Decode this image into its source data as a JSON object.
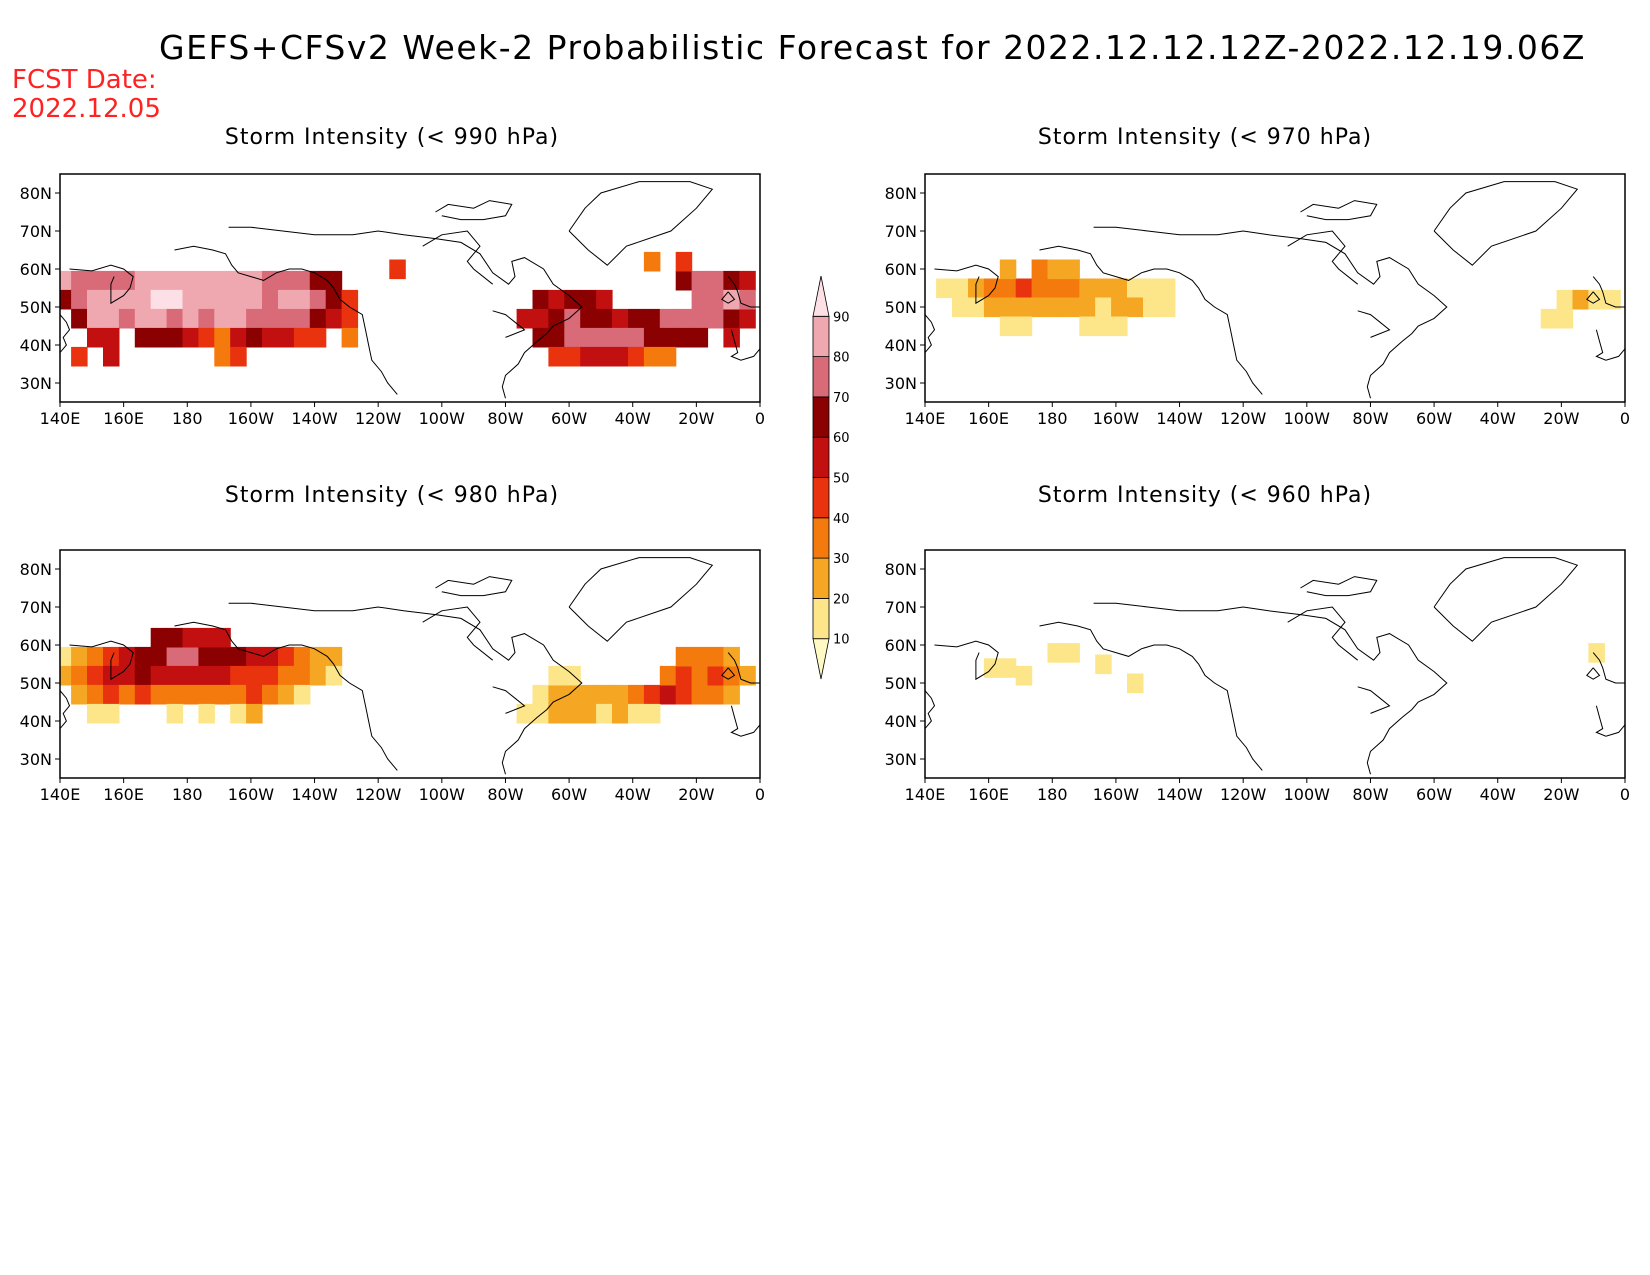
{
  "main_title": "GEFS+CFSv2 Week-2 Probabilistic Forecast for 2022.12.12.12Z-2022.12.19.06Z",
  "fcst_date_label": "FCST Date:",
  "fcst_date": "2022.12.05",
  "lat_labels": [
    "80N",
    "70N",
    "60N",
    "50N",
    "40N",
    "30N"
  ],
  "lat_values": [
    80,
    70,
    60,
    50,
    40,
    30
  ],
  "lon_labels": [
    "140E",
    "160E",
    "180",
    "160W",
    "140W",
    "120W",
    "100W",
    "80W",
    "60W",
    "40W",
    "20W",
    "0"
  ],
  "lon_values": [
    140,
    160,
    180,
    200,
    220,
    240,
    260,
    280,
    300,
    320,
    340,
    360
  ],
  "lat_range": [
    25,
    85
  ],
  "lon_range": [
    140,
    360
  ],
  "colorbar": {
    "levels": [
      10,
      20,
      30,
      40,
      50,
      60,
      70,
      80,
      90
    ],
    "colors": [
      "#fff9c4",
      "#fde68a",
      "#f5a623",
      "#f47a0e",
      "#e8330e",
      "#c21010",
      "#8b0000",
      "#d96a78",
      "#f0a8b0",
      "#fde0e6"
    ]
  },
  "panels": [
    {
      "id": "p990",
      "title": "Storm Intensity (< 990 hPa)",
      "cells": [
        [
          141,
          57,
          80
        ],
        [
          146,
          57,
          70
        ],
        [
          151,
          57,
          70
        ],
        [
          156,
          57,
          70
        ],
        [
          161,
          57,
          75
        ],
        [
          166,
          57,
          85
        ],
        [
          171,
          57,
          85
        ],
        [
          176,
          57,
          85
        ],
        [
          181,
          57,
          85
        ],
        [
          186,
          57,
          85
        ],
        [
          191,
          57,
          85
        ],
        [
          196,
          57,
          85
        ],
        [
          201,
          57,
          80
        ],
        [
          206,
          57,
          75
        ],
        [
          211,
          57,
          70
        ],
        [
          216,
          57,
          70
        ],
        [
          221,
          57,
          65
        ],
        [
          226,
          57,
          60
        ],
        [
          141,
          52,
          65
        ],
        [
          146,
          52,
          75
        ],
        [
          151,
          52,
          80
        ],
        [
          156,
          52,
          80
        ],
        [
          161,
          52,
          85
        ],
        [
          166,
          52,
          85
        ],
        [
          171,
          52,
          90
        ],
        [
          176,
          52,
          90
        ],
        [
          181,
          52,
          85
        ],
        [
          186,
          52,
          85
        ],
        [
          191,
          52,
          85
        ],
        [
          196,
          52,
          80
        ],
        [
          201,
          52,
          80
        ],
        [
          206,
          52,
          75
        ],
        [
          211,
          52,
          80
        ],
        [
          216,
          52,
          85
        ],
        [
          221,
          52,
          70
        ],
        [
          226,
          52,
          60
        ],
        [
          231,
          52,
          45
        ],
        [
          146,
          47,
          60
        ],
        [
          151,
          47,
          80
        ],
        [
          156,
          47,
          80
        ],
        [
          161,
          47,
          75
        ],
        [
          166,
          47,
          80
        ],
        [
          171,
          47,
          80
        ],
        [
          176,
          47,
          75
        ],
        [
          181,
          47,
          80
        ],
        [
          186,
          47,
          75
        ],
        [
          191,
          47,
          80
        ],
        [
          196,
          47,
          80
        ],
        [
          201,
          47,
          75
        ],
        [
          206,
          47,
          70
        ],
        [
          211,
          47,
          75
        ],
        [
          216,
          47,
          70
        ],
        [
          221,
          47,
          65
        ],
        [
          226,
          47,
          55
        ],
        [
          231,
          47,
          40
        ],
        [
          151,
          42,
          55
        ],
        [
          156,
          42,
          50
        ],
        [
          166,
          42,
          60
        ],
        [
          171,
          42,
          65
        ],
        [
          176,
          42,
          60
        ],
        [
          181,
          42,
          55
        ],
        [
          186,
          42,
          40
        ],
        [
          191,
          42,
          30
        ],
        [
          196,
          42,
          55
        ],
        [
          201,
          42,
          60
        ],
        [
          206,
          42,
          55
        ],
        [
          211,
          42,
          50
        ],
        [
          216,
          42,
          45
        ],
        [
          221,
          42,
          40
        ],
        [
          231,
          42,
          35
        ],
        [
          146,
          37,
          40
        ],
        [
          156,
          37,
          50
        ],
        [
          191,
          37,
          30
        ],
        [
          196,
          37,
          40
        ],
        [
          246,
          60,
          40
        ],
        [
          291,
          52,
          60
        ],
        [
          296,
          52,
          55
        ],
        [
          301,
          52,
          65
        ],
        [
          306,
          52,
          60
        ],
        [
          311,
          52,
          55
        ],
        [
          336,
          57,
          60
        ],
        [
          341,
          57,
          70
        ],
        [
          346,
          57,
          70
        ],
        [
          351,
          57,
          65
        ],
        [
          356,
          57,
          55
        ],
        [
          286,
          47,
          50
        ],
        [
          291,
          47,
          55
        ],
        [
          296,
          47,
          65
        ],
        [
          301,
          47,
          70
        ],
        [
          306,
          47,
          65
        ],
        [
          311,
          47,
          60
        ],
        [
          316,
          47,
          55
        ],
        [
          321,
          47,
          60
        ],
        [
          326,
          47,
          65
        ],
        [
          331,
          47,
          70
        ],
        [
          336,
          47,
          75
        ],
        [
          341,
          47,
          75
        ],
        [
          346,
          47,
          70
        ],
        [
          351,
          47,
          65
        ],
        [
          356,
          47,
          55
        ],
        [
          291,
          42,
          60
        ],
        [
          296,
          42,
          65
        ],
        [
          301,
          42,
          70
        ],
        [
          306,
          42,
          70
        ],
        [
          311,
          42,
          70
        ],
        [
          316,
          42,
          70
        ],
        [
          321,
          42,
          70
        ],
        [
          326,
          42,
          65
        ],
        [
          331,
          42,
          60
        ],
        [
          336,
          42,
          65
        ],
        [
          341,
          42,
          60
        ],
        [
          351,
          42,
          50
        ],
        [
          296,
          37,
          40
        ],
        [
          301,
          37,
          45
        ],
        [
          306,
          37,
          50
        ],
        [
          311,
          37,
          55
        ],
        [
          316,
          37,
          50
        ],
        [
          321,
          37,
          40
        ],
        [
          326,
          37,
          35
        ],
        [
          331,
          37,
          30
        ],
        [
          341,
          52,
          75
        ],
        [
          346,
          52,
          75
        ],
        [
          351,
          52,
          80
        ],
        [
          356,
          52,
          70
        ],
        [
          336,
          62,
          40
        ],
        [
          326,
          62,
          30
        ]
      ]
    },
    {
      "id": "p970",
      "title": "Storm Intensity (< 970 hPa)",
      "cells": [
        [
          146,
          55,
          15
        ],
        [
          151,
          55,
          15
        ],
        [
          156,
          55,
          20
        ],
        [
          161,
          55,
          30
        ],
        [
          166,
          55,
          35
        ],
        [
          171,
          55,
          40
        ],
        [
          176,
          55,
          35
        ],
        [
          181,
          55,
          30
        ],
        [
          186,
          55,
          30
        ],
        [
          191,
          55,
          25
        ],
        [
          196,
          55,
          20
        ],
        [
          201,
          55,
          20
        ],
        [
          206,
          55,
          15
        ],
        [
          211,
          55,
          15
        ],
        [
          216,
          55,
          10
        ],
        [
          151,
          50,
          10
        ],
        [
          156,
          50,
          15
        ],
        [
          161,
          50,
          20
        ],
        [
          166,
          50,
          25
        ],
        [
          171,
          50,
          20
        ],
        [
          176,
          50,
          20
        ],
        [
          181,
          50,
          25
        ],
        [
          186,
          50,
          20
        ],
        [
          191,
          50,
          20
        ],
        [
          196,
          50,
          15
        ],
        [
          201,
          50,
          20
        ],
        [
          206,
          50,
          25
        ],
        [
          211,
          50,
          15
        ],
        [
          216,
          50,
          10
        ],
        [
          166,
          45,
          10
        ],
        [
          171,
          45,
          10
        ],
        [
          191,
          45,
          10
        ],
        [
          196,
          45,
          10
        ],
        [
          201,
          45,
          10
        ],
        [
          176,
          60,
          30
        ],
        [
          181,
          60,
          25
        ],
        [
          186,
          60,
          20
        ],
        [
          166,
          60,
          20
        ],
        [
          341,
          52,
          15
        ],
        [
          346,
          52,
          20
        ],
        [
          351,
          52,
          15
        ],
        [
          356,
          52,
          10
        ],
        [
          336,
          47,
          10
        ],
        [
          341,
          47,
          10
        ]
      ]
    },
    {
      "id": "p980",
      "title": "Storm Intensity (< 980 hPa)",
      "cells": [
        [
          141,
          57,
          15
        ],
        [
          146,
          57,
          25
        ],
        [
          151,
          57,
          35
        ],
        [
          156,
          57,
          45
        ],
        [
          161,
          57,
          55
        ],
        [
          166,
          57,
          65
        ],
        [
          171,
          57,
          65
        ],
        [
          176,
          57,
          70
        ],
        [
          181,
          57,
          70
        ],
        [
          186,
          57,
          65
        ],
        [
          191,
          57,
          65
        ],
        [
          196,
          57,
          60
        ],
        [
          201,
          57,
          55
        ],
        [
          206,
          57,
          50
        ],
        [
          211,
          57,
          45
        ],
        [
          216,
          57,
          35
        ],
        [
          221,
          57,
          25
        ],
        [
          226,
          57,
          20
        ],
        [
          141,
          52,
          20
        ],
        [
          146,
          52,
          30
        ],
        [
          151,
          52,
          45
        ],
        [
          156,
          52,
          55
        ],
        [
          161,
          52,
          55
        ],
        [
          166,
          52,
          60
        ],
        [
          171,
          52,
          55
        ],
        [
          176,
          52,
          50
        ],
        [
          181,
          52,
          55
        ],
        [
          186,
          52,
          50
        ],
        [
          191,
          52,
          55
        ],
        [
          196,
          52,
          45
        ],
        [
          201,
          52,
          40
        ],
        [
          206,
          52,
          40
        ],
        [
          211,
          52,
          35
        ],
        [
          216,
          52,
          30
        ],
        [
          221,
          52,
          25
        ],
        [
          226,
          52,
          15
        ],
        [
          146,
          47,
          20
        ],
        [
          151,
          47,
          30
        ],
        [
          156,
          47,
          40
        ],
        [
          161,
          47,
          35
        ],
        [
          166,
          47,
          40
        ],
        [
          171,
          47,
          35
        ],
        [
          176,
          47,
          30
        ],
        [
          181,
          47,
          30
        ],
        [
          186,
          47,
          30
        ],
        [
          191,
          47,
          35
        ],
        [
          196,
          47,
          30
        ],
        [
          201,
          47,
          40
        ],
        [
          206,
          47,
          30
        ],
        [
          211,
          47,
          20
        ],
        [
          216,
          47,
          15
        ],
        [
          151,
          42,
          15
        ],
        [
          156,
          42,
          15
        ],
        [
          176,
          42,
          10
        ],
        [
          186,
          42,
          10
        ],
        [
          196,
          42,
          15
        ],
        [
          201,
          42,
          20
        ],
        [
          171,
          62,
          60
        ],
        [
          176,
          62,
          60
        ],
        [
          181,
          62,
          55
        ],
        [
          186,
          62,
          55
        ],
        [
          191,
          62,
          50
        ],
        [
          291,
          47,
          15
        ],
        [
          296,
          47,
          20
        ],
        [
          301,
          47,
          20
        ],
        [
          306,
          47,
          20
        ],
        [
          311,
          47,
          25
        ],
        [
          316,
          47,
          25
        ],
        [
          321,
          47,
          30
        ],
        [
          326,
          47,
          40
        ],
        [
          331,
          47,
          55
        ],
        [
          336,
          47,
          40
        ],
        [
          341,
          47,
          35
        ],
        [
          346,
          47,
          30
        ],
        [
          351,
          47,
          25
        ],
        [
          286,
          42,
          10
        ],
        [
          291,
          42,
          15
        ],
        [
          296,
          42,
          20
        ],
        [
          301,
          42,
          20
        ],
        [
          306,
          42,
          20
        ],
        [
          311,
          42,
          15
        ],
        [
          316,
          42,
          20
        ],
        [
          321,
          42,
          15
        ],
        [
          326,
          42,
          10
        ],
        [
          331,
          52,
          35
        ],
        [
          336,
          52,
          40
        ],
        [
          341,
          52,
          35
        ],
        [
          346,
          52,
          40
        ],
        [
          351,
          52,
          35
        ],
        [
          356,
          52,
          25
        ],
        [
          336,
          57,
          30
        ],
        [
          341,
          57,
          35
        ],
        [
          346,
          57,
          30
        ],
        [
          351,
          57,
          25
        ],
        [
          296,
          52,
          10
        ],
        [
          301,
          52,
          10
        ]
      ]
    },
    {
      "id": "p960",
      "title": "Storm Intensity (< 960 hPa)",
      "cells": [
        [
          161,
          54,
          10
        ],
        [
          166,
          54,
          10
        ],
        [
          171,
          52,
          10
        ],
        [
          181,
          58,
          10
        ],
        [
          186,
          58,
          10
        ],
        [
          196,
          55,
          10
        ],
        [
          206,
          50,
          10
        ],
        [
          351,
          58,
          10
        ]
      ]
    }
  ]
}
